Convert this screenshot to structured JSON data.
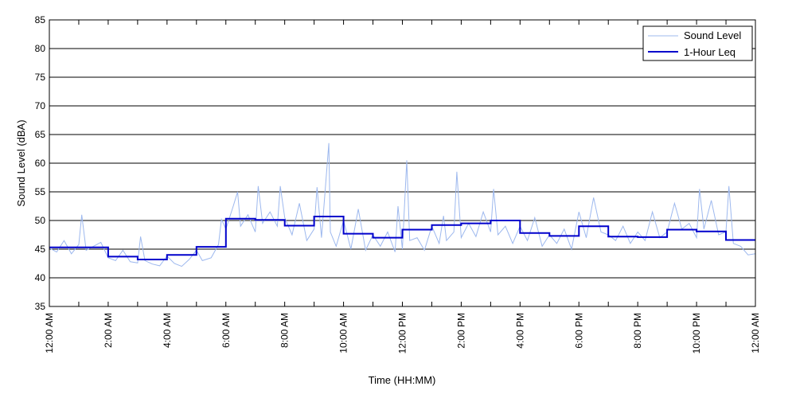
{
  "chart_data": {
    "type": "line",
    "title": "",
    "xlabel": "Time (HH:MM)",
    "ylabel": "Sound Level (dBA)",
    "xlim": [
      0,
      24
    ],
    "ylim": [
      35,
      85
    ],
    "y_ticks": [
      35,
      40,
      45,
      50,
      55,
      60,
      65,
      70,
      75,
      80,
      85
    ],
    "x_ticks": [
      {
        "x": 0,
        "label": "12:00 AM"
      },
      {
        "x": 2,
        "label": "2:00 AM"
      },
      {
        "x": 4,
        "label": "4:00 AM"
      },
      {
        "x": 6,
        "label": "6:00 AM"
      },
      {
        "x": 8,
        "label": "8:00 AM"
      },
      {
        "x": 10,
        "label": "10:00 AM"
      },
      {
        "x": 12,
        "label": "12:00 PM"
      },
      {
        "x": 14,
        "label": "2:00 PM"
      },
      {
        "x": 16,
        "label": "4:00 PM"
      },
      {
        "x": 18,
        "label": "6:00 PM"
      },
      {
        "x": 20,
        "label": "8:00 PM"
      },
      {
        "x": 22,
        "label": "10:00 PM"
      },
      {
        "x": 24,
        "label": "12:00 AM"
      }
    ],
    "grid": "horizontal",
    "legend_position": "top-right",
    "series": [
      {
        "name": "Sound Level",
        "color": "#9db8ee",
        "style": "thin noisy line",
        "points": [
          [
            0.0,
            45.2
          ],
          [
            0.25,
            44.5
          ],
          [
            0.5,
            46.5
          ],
          [
            0.75,
            44.2
          ],
          [
            1.0,
            45.8
          ],
          [
            1.1,
            51.0
          ],
          [
            1.25,
            44.8
          ],
          [
            1.5,
            45.5
          ],
          [
            1.75,
            46.2
          ],
          [
            2.0,
            43.5
          ],
          [
            2.25,
            43.0
          ],
          [
            2.5,
            44.8
          ],
          [
            2.75,
            42.8
          ],
          [
            3.0,
            42.6
          ],
          [
            3.1,
            47.2
          ],
          [
            3.25,
            43.0
          ],
          [
            3.5,
            42.4
          ],
          [
            3.75,
            42.1
          ],
          [
            4.0,
            43.8
          ],
          [
            4.25,
            42.5
          ],
          [
            4.5,
            42.0
          ],
          [
            4.75,
            43.2
          ],
          [
            5.0,
            44.8
          ],
          [
            5.2,
            43.0
          ],
          [
            5.5,
            43.5
          ],
          [
            5.75,
            45.8
          ],
          [
            5.85,
            50.2
          ],
          [
            6.0,
            48.5
          ],
          [
            6.25,
            52.5
          ],
          [
            6.4,
            55.0
          ],
          [
            6.5,
            49.0
          ],
          [
            6.75,
            51.0
          ],
          [
            7.0,
            48.0
          ],
          [
            7.1,
            56.0
          ],
          [
            7.25,
            49.5
          ],
          [
            7.5,
            51.5
          ],
          [
            7.75,
            49.0
          ],
          [
            7.85,
            56.0
          ],
          [
            8.0,
            50.5
          ],
          [
            8.25,
            47.5
          ],
          [
            8.5,
            53.0
          ],
          [
            8.75,
            46.5
          ],
          [
            9.0,
            48.5
          ],
          [
            9.1,
            55.8
          ],
          [
            9.25,
            47.0
          ],
          [
            9.5,
            63.5
          ],
          [
            9.55,
            48.0
          ],
          [
            9.75,
            45.5
          ],
          [
            10.0,
            50.0
          ],
          [
            10.25,
            45.0
          ],
          [
            10.5,
            52.0
          ],
          [
            10.75,
            44.8
          ],
          [
            11.0,
            47.5
          ],
          [
            11.25,
            45.5
          ],
          [
            11.5,
            48.0
          ],
          [
            11.75,
            44.5
          ],
          [
            11.85,
            52.5
          ],
          [
            12.0,
            45.0
          ],
          [
            12.15,
            60.5
          ],
          [
            12.25,
            46.5
          ],
          [
            12.5,
            47.0
          ],
          [
            12.75,
            44.8
          ],
          [
            13.0,
            49.0
          ],
          [
            13.25,
            46.0
          ],
          [
            13.4,
            50.8
          ],
          [
            13.5,
            46.5
          ],
          [
            13.75,
            48.0
          ],
          [
            13.85,
            58.5
          ],
          [
            14.0,
            47.0
          ],
          [
            14.25,
            49.5
          ],
          [
            14.5,
            47.2
          ],
          [
            14.75,
            51.5
          ],
          [
            15.0,
            48.0
          ],
          [
            15.1,
            55.5
          ],
          [
            15.25,
            47.5
          ],
          [
            15.5,
            49.0
          ],
          [
            15.75,
            46.0
          ],
          [
            16.0,
            49.0
          ],
          [
            16.25,
            46.5
          ],
          [
            16.5,
            50.5
          ],
          [
            16.75,
            45.5
          ],
          [
            17.0,
            47.5
          ],
          [
            17.25,
            46.0
          ],
          [
            17.5,
            48.5
          ],
          [
            17.75,
            45.0
          ],
          [
            18.0,
            51.5
          ],
          [
            18.25,
            47.0
          ],
          [
            18.5,
            54.0
          ],
          [
            18.75,
            48.0
          ],
          [
            19.0,
            47.5
          ],
          [
            19.25,
            46.5
          ],
          [
            19.5,
            49.0
          ],
          [
            19.75,
            46.0
          ],
          [
            20.0,
            48.0
          ],
          [
            20.25,
            46.5
          ],
          [
            20.5,
            51.5
          ],
          [
            20.75,
            47.0
          ],
          [
            21.0,
            48.0
          ],
          [
            21.25,
            53.0
          ],
          [
            21.5,
            48.5
          ],
          [
            21.75,
            49.5
          ],
          [
            22.0,
            47.0
          ],
          [
            22.1,
            55.5
          ],
          [
            22.25,
            48.5
          ],
          [
            22.5,
            53.5
          ],
          [
            22.75,
            47.5
          ],
          [
            23.0,
            48.0
          ],
          [
            23.1,
            56.0
          ],
          [
            23.25,
            46.0
          ],
          [
            23.5,
            45.5
          ],
          [
            23.75,
            44.0
          ],
          [
            24.0,
            44.2
          ]
        ]
      },
      {
        "name": "1-Hour Leq",
        "color": "#0000cc",
        "style": "step",
        "hourly_values": [
          45.3,
          45.3,
          43.7,
          43.2,
          44.0,
          45.4,
          50.3,
          50.1,
          49.1,
          50.7,
          47.7,
          47.0,
          48.4,
          49.2,
          49.5,
          50.0,
          47.8,
          47.3,
          49.0,
          47.2,
          47.1,
          48.4,
          48.1,
          46.6
        ]
      }
    ]
  }
}
